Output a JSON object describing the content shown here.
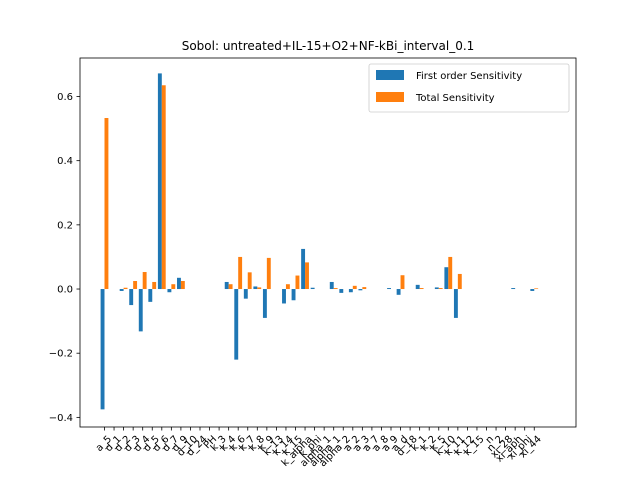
{
  "chart_data": {
    "type": "bar",
    "title": "Sobol: untreated+IL-15+O2+NF-kBi_interval_0.1",
    "xlabel": "",
    "ylabel": "",
    "ylim": [
      -0.43,
      0.72
    ],
    "yticks": [
      -0.4,
      -0.2,
      0.0,
      0.2,
      0.4,
      0.6
    ],
    "ytick_labels": [
      "−0.4",
      "−0.2",
      "0.0",
      "0.2",
      "0.4",
      "0.6"
    ],
    "grid": false,
    "legend_position": "top-right",
    "categories": [
      "a_5",
      "d_1",
      "d_2",
      "d_3",
      "d_4",
      "d_5",
      "d_6",
      "d_7",
      "d_9",
      "d_10",
      "d_24",
      "PH",
      "k_3",
      "k_4",
      "k_6",
      "k_7",
      "k_8",
      "k_9",
      "k_13",
      "k_14",
      "k_15",
      "k_alpha",
      "k_phi",
      "alpha_1",
      "alpha_1",
      "alpha_2",
      "a_2",
      "a_3",
      "a_7",
      "a_8",
      "a_9",
      "a_d",
      "d_18",
      "k_1",
      "k_2",
      "k_5",
      "k_10",
      "k_11",
      "k_12",
      "k_15",
      "n",
      "n_2",
      "xi_28",
      "xi_aph",
      "xi_phi",
      "xi_44"
    ],
    "series": [
      {
        "name": "First order Sensitivity",
        "color": "#1f77b4",
        "values": [
          -0.375,
          0.0,
          -0.006,
          -0.05,
          -0.132,
          -0.04,
          0.672,
          -0.01,
          0.035,
          0.0,
          0.0,
          0.0,
          0.0,
          0.022,
          -0.22,
          -0.03,
          0.008,
          -0.09,
          0.0,
          -0.045,
          -0.035,
          0.125,
          0.004,
          0.0,
          0.022,
          -0.012,
          -0.01,
          -0.004,
          0.0,
          0.0,
          0.003,
          -0.018,
          0.0,
          0.013,
          0.0,
          0.005,
          0.068,
          -0.09,
          0.0,
          0.0,
          0.0,
          0.0,
          0.0,
          0.003,
          0.0,
          -0.006
        ]
      },
      {
        "name": "Total Sensitivity",
        "color": "#ff7f0e",
        "values": [
          0.533,
          0.0,
          0.004,
          0.025,
          0.053,
          0.022,
          0.635,
          0.015,
          0.025,
          0.0,
          0.0,
          0.0,
          0.0,
          0.015,
          0.1,
          0.052,
          0.005,
          0.097,
          0.0,
          0.015,
          0.042,
          0.083,
          0.0,
          0.0,
          0.003,
          0.0,
          0.01,
          0.006,
          0.0,
          0.0,
          0.0,
          0.043,
          0.0,
          0.003,
          0.0,
          0.003,
          0.1,
          0.047,
          0.0,
          0.0,
          0.0,
          0.0,
          0.0,
          0.0,
          0.0,
          0.002
        ]
      }
    ]
  }
}
